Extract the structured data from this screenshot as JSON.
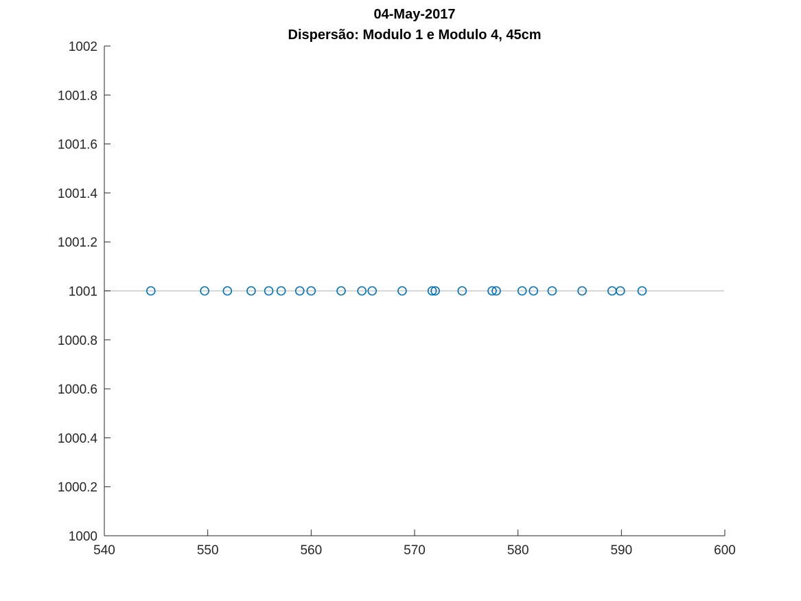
{
  "chart_data": {
    "type": "scatter",
    "title": "04-May-2017",
    "subtitle": "Dispersão: Modulo 1 e Modulo 4, 45cm",
    "xlabel": "",
    "ylabel": "",
    "xlim": [
      540,
      600
    ],
    "ylim": [
      1000,
      1002
    ],
    "xticks": [
      540,
      550,
      560,
      570,
      580,
      590,
      600
    ],
    "yticks": [
      1000,
      1000.2,
      1000.4,
      1000.6,
      1000.8,
      1001,
      1001.2,
      1001.4,
      1001.6,
      1001.8,
      1002
    ],
    "xtick_labels": [
      "540",
      "550",
      "560",
      "570",
      "580",
      "590",
      "600"
    ],
    "ytick_labels": [
      "1000",
      "1000.2",
      "1000.4",
      "1000.6",
      "1000.8",
      "1001",
      "1001.2",
      "1001.4",
      "1001.6",
      "1001.8",
      "1002"
    ],
    "grid": false,
    "reference_line": {
      "y": 1001,
      "x_range": [
        540,
        600
      ],
      "color": "#c8c8c8"
    },
    "series": [
      {
        "marker": "open-circle",
        "color": "#0072bd",
        "x": [
          544.5,
          549.7,
          551.9,
          554.2,
          555.9,
          557.1,
          558.9,
          560.0,
          562.9,
          564.9,
          565.9,
          568.8,
          571.7,
          572.0,
          574.6,
          577.5,
          577.9,
          580.4,
          581.5,
          583.3,
          586.2,
          589.1,
          589.9,
          592.0
        ],
        "y": [
          1001,
          1001,
          1001,
          1001,
          1001,
          1001,
          1001,
          1001,
          1001,
          1001,
          1001,
          1001,
          1001,
          1001,
          1001,
          1001,
          1001,
          1001,
          1001,
          1001,
          1001,
          1001,
          1001,
          1001
        ]
      }
    ]
  }
}
